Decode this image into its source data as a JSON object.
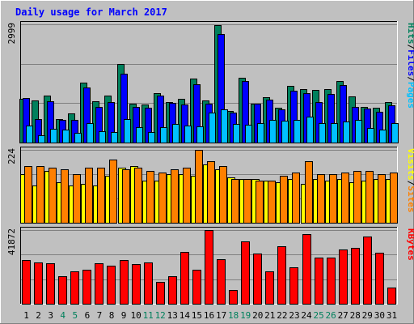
{
  "chart_data": {
    "type": "bar",
    "title": "Daily usage for March 2017",
    "title_color": "#0000ff",
    "categories": [
      "1",
      "2",
      "3",
      "4",
      "5",
      "6",
      "7",
      "8",
      "9",
      "10",
      "11",
      "12",
      "13",
      "14",
      "15",
      "16",
      "17",
      "18",
      "19",
      "20",
      "21",
      "22",
      "23",
      "24",
      "25",
      "26",
      "27",
      "28",
      "29",
      "30",
      "31"
    ],
    "weekend_days": [
      "4",
      "5",
      "11",
      "12",
      "18",
      "19",
      "25",
      "26"
    ],
    "weekday_label_color": "#000000",
    "weekend_label_color": "#00805c",
    "grid": true,
    "panels": [
      {
        "id": "hits",
        "max_label": "2999",
        "ymax": 2999,
        "legend": [
          {
            "text": "Hits",
            "color": "#00805c"
          },
          {
            "text": "Files",
            "color": "#0000ff"
          },
          {
            "text": "Pages",
            "color": "#00c0ff"
          }
        ],
        "legend_separator": "/",
        "separator_color": "#000000",
        "series": [
          {
            "name": "Hits",
            "color": "#00805c",
            "values": [
              1100,
              1060,
              1190,
              600,
              740,
              1520,
              1050,
              1200,
              1990,
              990,
              960,
              1250,
              1020,
              1110,
              1630,
              1070,
              2980,
              800,
              1650,
              990,
              1160,
              880,
              1430,
              1350,
              1340,
              1360,
              1570,
              1170,
              910,
              890,
              1030
            ]
          },
          {
            "name": "Files",
            "color": "#0000ff",
            "values": [
              1120,
              600,
              1050,
              580,
              570,
              1390,
              910,
              1030,
              1750,
              900,
              880,
              1190,
              1000,
              970,
              1480,
              980,
              2760,
              770,
              1570,
              980,
              1080,
              850,
              1310,
              1260,
              1020,
              1240,
              1450,
              900,
              870,
              790,
              950
            ]
          },
          {
            "name": "Pages",
            "color": "#00c0ff",
            "values": [
              440,
              180,
              340,
              330,
              240,
              500,
              290,
              270,
              600,
              400,
              270,
              400,
              480,
              430,
              420,
              770,
              850,
              470,
              450,
              500,
              570,
              550,
              580,
              660,
              500,
              490,
              530,
              570,
              370,
              320,
              490
            ]
          }
        ]
      },
      {
        "id": "visits",
        "max_label": "224",
        "ymax": 224,
        "legend": [
          {
            "text": "Visits",
            "color": "#ffff00"
          },
          {
            "text": "Sites",
            "color": "#ff8000"
          }
        ],
        "legend_separator": "/",
        "separator_color": "#000000",
        "series": [
          {
            "name": "Visits",
            "color": "#ffff00",
            "values": [
              150,
              115,
              160,
              125,
              115,
              120,
              115,
              145,
              170,
              175,
              130,
              130,
              150,
              150,
              145,
              180,
              165,
              140,
              135,
              135,
              130,
              125,
              135,
              120,
              135,
              130,
              135,
              125,
              130,
              135,
              135
            ]
          },
          {
            "name": "Sites",
            "color": "#ff8000",
            "values": [
              175,
              175,
              170,
              165,
              150,
              170,
              170,
              195,
              165,
              170,
              160,
              155,
              165,
              170,
              225,
              190,
              175,
              135,
              135,
              130,
              130,
              145,
              155,
              190,
              150,
              150,
              155,
              160,
              160,
              150,
              155
            ]
          }
        ]
      },
      {
        "id": "kbytes",
        "max_label": "41872",
        "ymax": 41872,
        "legend": [
          {
            "text": "KBytes",
            "color": "#ff0000"
          }
        ],
        "legend_separator": "/",
        "separator_color": "#000000",
        "series": [
          {
            "name": "KBytes",
            "color": "#ff0000",
            "values": [
              25000,
              23500,
              23000,
              15800,
              18500,
              19200,
              23200,
              21500,
              24800,
              22500,
              23300,
              12300,
              15800,
              29500,
              19300,
              41872,
              25500,
              8000,
              35400,
              28500,
              18200,
              32700,
              20600,
              39600,
              26000,
              26400,
              31000,
              31700,
              38000,
              28800,
              9200
            ]
          }
        ]
      }
    ]
  }
}
